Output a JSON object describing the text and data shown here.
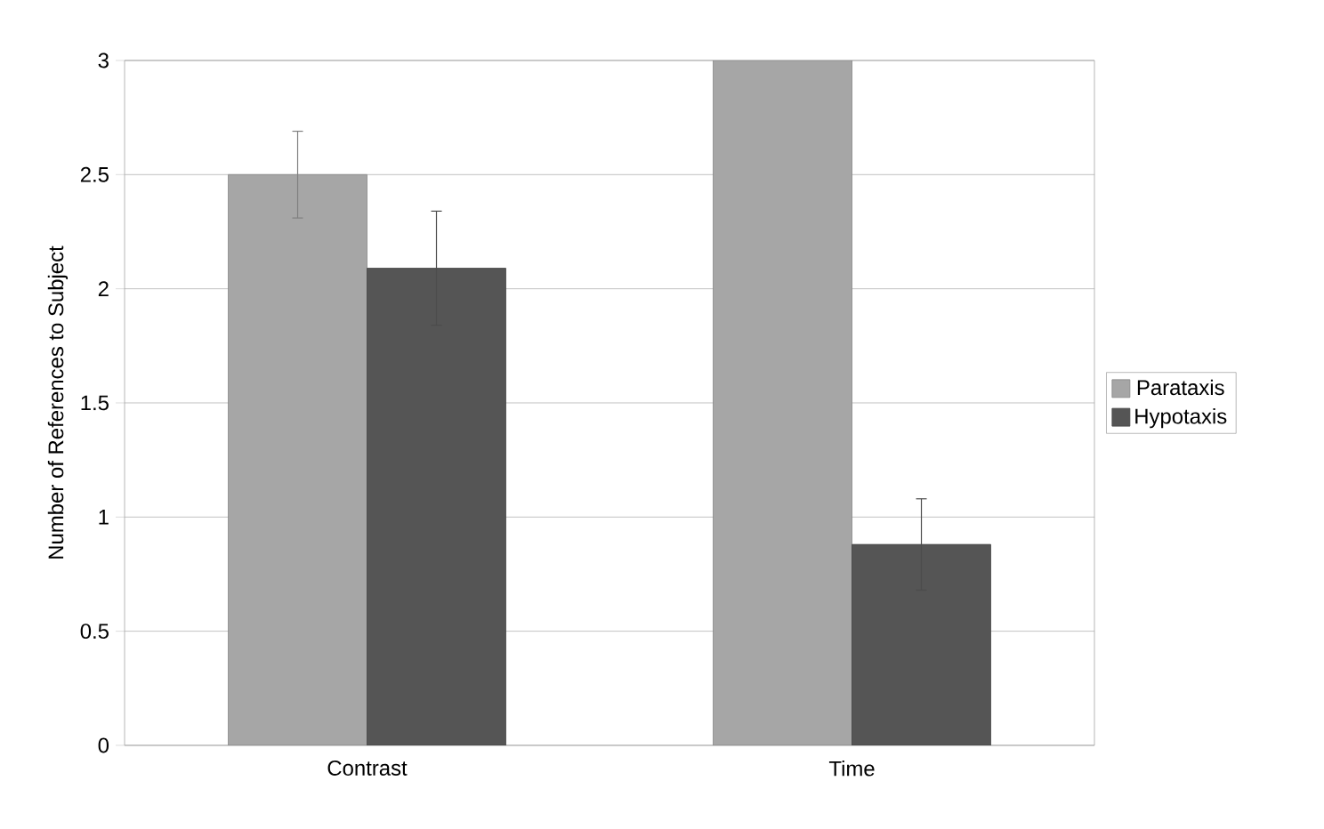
{
  "chart_data": {
    "type": "bar",
    "ylabel": "Number of References to Subject",
    "categories": [
      "Contrast",
      "Time"
    ],
    "series": [
      {
        "name": "Parataxis",
        "color": "#a6a6a6",
        "values": [
          2.5,
          3.0
        ],
        "errors": [
          0.19,
          null
        ]
      },
      {
        "name": "Hypotaxis",
        "color": "#555555",
        "values": [
          2.09,
          0.88
        ],
        "errors": [
          0.25,
          0.2
        ]
      }
    ],
    "ylim": [
      0,
      3
    ],
    "yticks": [
      0,
      0.5,
      1,
      1.5,
      2,
      2.5,
      3
    ],
    "grid": "y",
    "legend": "right"
  }
}
